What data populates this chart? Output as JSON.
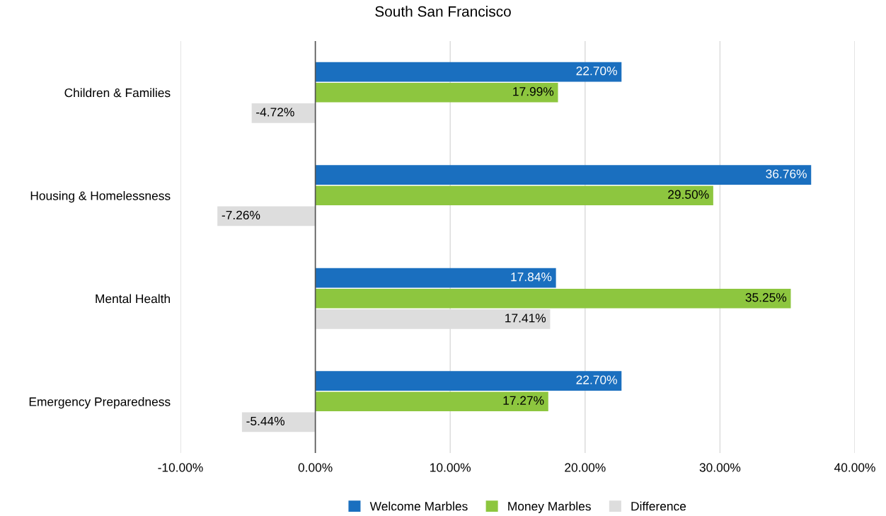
{
  "chart_data": {
    "type": "bar",
    "orientation": "horizontal",
    "title": "South San Francisco",
    "categories": [
      "Children & Families",
      "Housing & Homelessness",
      "Mental Health",
      "Emergency Preparedness"
    ],
    "series": [
      {
        "name": "Welcome Marbles",
        "color": "#1a6fbf",
        "values": [
          22.7,
          36.76,
          17.84,
          22.7
        ],
        "value_labels": [
          "22.70%",
          "36.76%",
          "17.84%",
          "22.70%"
        ]
      },
      {
        "name": "Money Marbles",
        "color": "#8dc63f",
        "values": [
          17.99,
          29.5,
          35.25,
          17.27
        ],
        "value_labels": [
          "17.99%",
          "29.50%",
          "35.25%",
          "17.27%"
        ]
      },
      {
        "name": "Difference",
        "color": "#dddddd",
        "values": [
          -4.72,
          -7.26,
          17.41,
          -5.44
        ],
        "value_labels": [
          "-4.72%",
          "-7.26%",
          "17.41%",
          "-5.44%"
        ]
      }
    ],
    "xlim": [
      -10,
      40
    ],
    "xticks": [
      {
        "value": -10,
        "label": "-10.00%"
      },
      {
        "value": 0,
        "label": "0.00%"
      },
      {
        "value": 10,
        "label": "10.00%"
      },
      {
        "value": 20,
        "label": "20.00%"
      },
      {
        "value": 30,
        "label": "30.00%"
      },
      {
        "value": 40,
        "label": "40.00%"
      }
    ],
    "ref_lines": [
      {
        "axis": "x",
        "value": 0,
        "color": "#555555"
      }
    ],
    "grid": "x",
    "legend": "bottom"
  }
}
